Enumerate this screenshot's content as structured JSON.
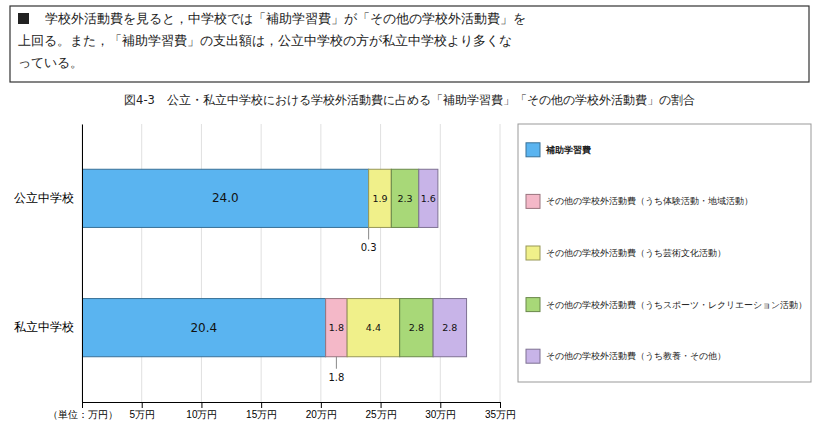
{
  "chart_data": {
    "type": "bar",
    "orientation": "horizontal",
    "stacked": true,
    "data_labels": true,
    "grid": true,
    "legend": "right",
    "title": "図4-3　公立・私立中学校における学校外活動費に占める「補助学習費」「その他の学校外活動費」の割合",
    "subtitle": [
      "　学校外活動費を見ると，中学校では「補助学習費」が「その他の学校外活動費」を",
      "上回る。また，「補助学習費」の支出額は，公立中学校の方が私立中学校より多くな",
      "っている。"
    ],
    "categories": [
      "公立中学校",
      "私立中学校"
    ],
    "series": [
      {
        "name": "補助学習費",
        "color": "#5ab4f0",
        "values": [
          24.0,
          20.4
        ],
        "value_labels": [
          "24.0",
          "20.4"
        ]
      },
      {
        "name": "その他の学校外活動費（うち体験活動・地域活動）",
        "color": "#f4b8c8",
        "values": [
          null,
          1.8
        ],
        "value_labels": [
          null,
          "1.8"
        ]
      },
      {
        "name": "その他の学校外活動費（うち芸術文化活動）",
        "color": "#f0f08a",
        "values": [
          1.9,
          4.4
        ],
        "value_labels": [
          "1.9",
          "4.4"
        ]
      },
      {
        "name": "その他の学校外活動費（うちスポーツ・レクリエーション活動）",
        "color": "#a8d878",
        "values": [
          2.3,
          2.8
        ],
        "value_labels": [
          "2.3",
          "2.8"
        ]
      },
      {
        "name": "その他の学校外活動費（うち教養・その他）",
        "color": "#c8b4e8",
        "values": [
          1.6,
          2.8
        ],
        "value_labels": [
          "1.6",
          "2.8"
        ]
      }
    ],
    "xlim": [
      0,
      35
    ],
    "xticks": [
      {
        "value": 0,
        "label": "（単位：万円）"
      },
      {
        "value": 5,
        "label": "5万円"
      },
      {
        "value": 10,
        "label": "10万円"
      },
      {
        "value": 15,
        "label": "15万円"
      },
      {
        "value": 20,
        "label": "20万円"
      },
      {
        "value": 25,
        "label": "25万円"
      },
      {
        "value": 30,
        "label": "30万円"
      },
      {
        "value": 35,
        "label": "35万円"
      }
    ],
    "annotations": [
      {
        "text": "0.3",
        "x": 24.0,
        "category": "公立中学校"
      },
      {
        "text": "1.8",
        "x": 21.3,
        "category": "私立中学校"
      }
    ]
  }
}
